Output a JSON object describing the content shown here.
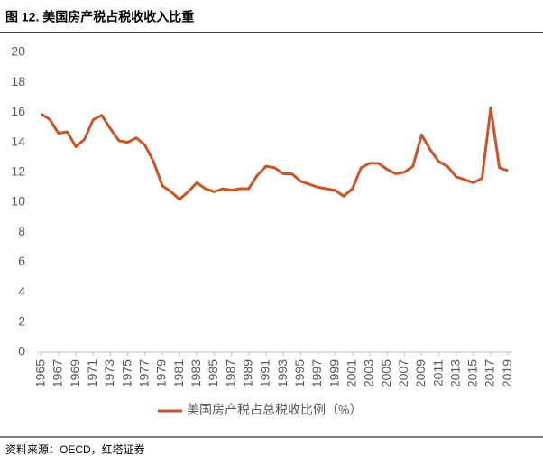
{
  "chart_data": {
    "type": "line",
    "title": "图 12.  美国房产税占税收收入比重",
    "source": "资料来源：OECD，红塔证券",
    "x": [
      1965,
      1966,
      1967,
      1968,
      1969,
      1970,
      1971,
      1972,
      1973,
      1974,
      1975,
      1976,
      1977,
      1978,
      1979,
      1980,
      1981,
      1982,
      1983,
      1984,
      1985,
      1986,
      1987,
      1988,
      1989,
      1990,
      1991,
      1992,
      1993,
      1994,
      1995,
      1996,
      1997,
      1998,
      1999,
      2000,
      2001,
      2002,
      2003,
      2004,
      2005,
      2006,
      2007,
      2008,
      2009,
      2010,
      2011,
      2012,
      2013,
      2014,
      2015,
      2016,
      2017,
      2018,
      2019
    ],
    "series": [
      {
        "name": "美国房产税占总税收比例（%）",
        "color": "#c8552a",
        "values": [
          15.9,
          15.5,
          14.6,
          14.7,
          13.7,
          14.2,
          15.5,
          15.8,
          14.9,
          14.1,
          14.0,
          14.3,
          13.8,
          12.7,
          11.1,
          10.7,
          10.2,
          10.7,
          11.3,
          10.9,
          10.7,
          10.9,
          10.8,
          10.9,
          10.9,
          11.8,
          12.4,
          12.3,
          11.9,
          11.9,
          11.4,
          11.2,
          11.0,
          10.9,
          10.8,
          10.4,
          10.9,
          12.3,
          12.6,
          12.6,
          12.2,
          11.9,
          12.0,
          12.4,
          14.5,
          13.5,
          12.7,
          12.4,
          11.7,
          11.5,
          11.3,
          11.6,
          16.3,
          12.3,
          12.1
        ]
      }
    ],
    "xlim": [
      1964.5,
      2019.5
    ],
    "xticks": [
      1965,
      1967,
      1969,
      1971,
      1973,
      1975,
      1977,
      1979,
      1981,
      1983,
      1985,
      1987,
      1989,
      1991,
      1993,
      1995,
      1997,
      1999,
      2001,
      2003,
      2005,
      2007,
      2009,
      2011,
      2013,
      2015,
      2017,
      2019
    ],
    "ylim": [
      0,
      20
    ],
    "yticks": [
      0,
      2,
      4,
      6,
      8,
      10,
      12,
      14,
      16,
      18,
      20
    ],
    "grid": false,
    "legend": "bottom"
  }
}
